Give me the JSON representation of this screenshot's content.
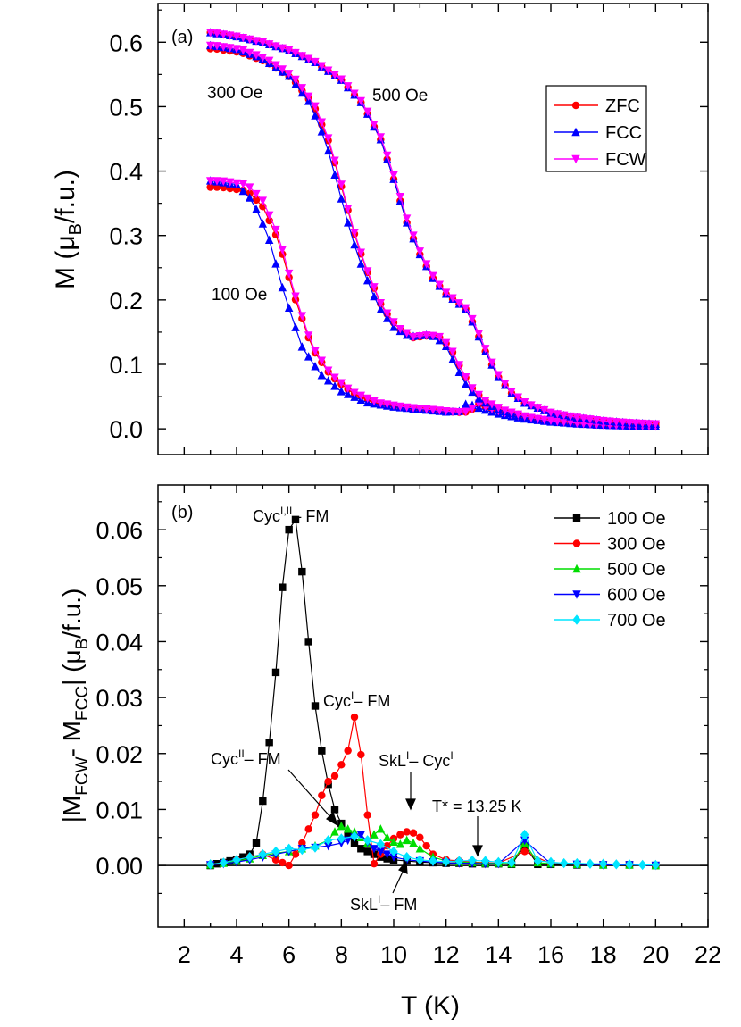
{
  "figure": {
    "xlabel": "T (K)",
    "xticks": [
      "2",
      "4",
      "6",
      "8",
      "10",
      "12",
      "14",
      "16",
      "18",
      "20",
      "22"
    ]
  },
  "chart_data": [
    {
      "type": "line",
      "panel_label": "(a)",
      "ylabel_main": "M (μ",
      "ylabel_sub": "B",
      "ylabel_tail": "/f.u.)",
      "xlim": [
        1,
        22
      ],
      "ylim": [
        -0.04,
        0.66
      ],
      "yticks": [
        "0.0",
        "0.1",
        "0.2",
        "0.3",
        "0.4",
        "0.5",
        "0.6"
      ],
      "annotations": [
        "300 Oe",
        "500 Oe",
        "100 Oe"
      ],
      "legend": {
        "position": "upper-right",
        "entries": [
          "ZFC",
          "FCC",
          "FCW"
        ]
      },
      "series_style": {
        "ZFC": "#ff0000",
        "FCC": "#0000ff",
        "FCW": "#ff00ff"
      },
      "curves": [
        {
          "field": "100 Oe",
          "ZFC_top": 0.375,
          "FCC_top": 0.385,
          "FCW_top": 0.385,
          "ZFC_T_shift": 0.4,
          "FCC_T_shift": 0.0,
          "FCW_T_shift": 0.4,
          "profile_T": [
            3,
            4,
            4.6,
            5.2,
            5.8,
            6.5,
            7.2,
            8,
            9,
            10,
            11,
            12,
            12.5,
            12.8,
            13.2,
            14,
            15,
            16,
            17,
            18,
            19,
            20
          ],
          "profile_M": [
            1.0,
            0.985,
            0.92,
            0.78,
            0.55,
            0.33,
            0.22,
            0.15,
            0.105,
            0.088,
            0.078,
            0.068,
            0.07,
            0.105,
            0.085,
            0.06,
            0.04,
            0.028,
            0.02,
            0.015,
            0.012,
            0.01
          ]
        },
        {
          "field": "300 Oe",
          "ZFC_top": 0.59,
          "FCC_top": 0.595,
          "FCW_top": 0.595,
          "ZFC_T_shift": 0.15,
          "FCC_T_shift": 0.0,
          "FCW_T_shift": 0.15,
          "profile_T": [
            3,
            4,
            5,
            6,
            6.8,
            7.4,
            8,
            8.4,
            8.8,
            9.4,
            10,
            10.6,
            11.2,
            11.6,
            12,
            12.4,
            12.8,
            13.3,
            14,
            15,
            16,
            17,
            18,
            19,
            20
          ],
          "profile_M": [
            1.0,
            0.99,
            0.965,
            0.92,
            0.85,
            0.75,
            0.6,
            0.5,
            0.42,
            0.32,
            0.265,
            0.24,
            0.245,
            0.24,
            0.215,
            0.16,
            0.11,
            0.075,
            0.05,
            0.03,
            0.02,
            0.014,
            0.01,
            0.008,
            0.007
          ]
        },
        {
          "field": "500 Oe",
          "ZFC_top": 0.615,
          "FCC_top": 0.615,
          "FCW_top": 0.615,
          "ZFC_T_shift": 0.0,
          "FCC_T_shift": 0.0,
          "FCW_T_shift": 0.05,
          "profile_T": [
            3,
            4,
            5,
            6,
            7,
            8,
            8.8,
            9.5,
            10,
            10.5,
            11,
            11.5,
            12,
            12.5,
            12.8,
            13.2,
            13.6,
            14,
            14.5,
            15,
            16,
            17,
            18,
            19,
            20
          ],
          "profile_M": [
            1.0,
            0.99,
            0.975,
            0.955,
            0.925,
            0.88,
            0.82,
            0.73,
            0.63,
            0.52,
            0.44,
            0.38,
            0.34,
            0.315,
            0.3,
            0.24,
            0.18,
            0.13,
            0.09,
            0.065,
            0.04,
            0.028,
            0.02,
            0.015,
            0.012
          ]
        }
      ]
    },
    {
      "type": "line",
      "panel_label": "(b)",
      "ylabel_a": "|M",
      "ylabel_a_sub": "FCW",
      "ylabel_b": "- M",
      "ylabel_b_sub": "FCC",
      "ylabel_c": "| (μ",
      "ylabel_c_sub": "B",
      "ylabel_d": "/f.u.)",
      "xlim": [
        1,
        22
      ],
      "ylim": [
        -0.011,
        0.068
      ],
      "yticks": [
        "0.00",
        "0.01",
        "0.02",
        "0.03",
        "0.04",
        "0.05",
        "0.06"
      ],
      "legend": {
        "position": "upper-right",
        "entries": [
          "100 Oe",
          "300 Oe",
          "500 Oe",
          "600 Oe",
          "700 Oe"
        ]
      },
      "annotations": [
        {
          "base": "Cyc",
          "sup": "I,II",
          "tail": "– FM"
        },
        {
          "base": "Cyc",
          "sup": "I",
          "tail": "– FM"
        },
        {
          "base": "Cyc",
          "sup": "II",
          "tail": "– FM"
        },
        {
          "base": "SkL",
          "sup": "I",
          "tail": "– Cyc",
          "sup2": "I"
        },
        {
          "base": "T* = 13.25 K",
          "sup": "",
          "tail": ""
        },
        {
          "base": "SkL",
          "sup": "I",
          "tail": "– FM"
        }
      ],
      "series": [
        {
          "name": "100 Oe",
          "color": "#000000",
          "marker": "square",
          "x": [
            3,
            3.25,
            3.5,
            3.75,
            4,
            4.25,
            4.5,
            4.75,
            5,
            5.25,
            5.5,
            5.75,
            6,
            6.25,
            6.5,
            6.75,
            7,
            7.25,
            7.5,
            7.75,
            8,
            8.25,
            8.5,
            8.75,
            9,
            9.25,
            9.5,
            9.75,
            10,
            10.5,
            11,
            11.5,
            12,
            12.5,
            13,
            13.5,
            14,
            14.5,
            15,
            15.5,
            16,
            17,
            18,
            19,
            20
          ],
          "y": [
            0,
            0.0003,
            0.0005,
            0.0008,
            0.001,
            0.0015,
            0.002,
            0.004,
            0.0115,
            0.022,
            0.0345,
            0.0497,
            0.06,
            0.0618,
            0.0525,
            0.04,
            0.0285,
            0.0205,
            0.0145,
            0.01,
            0.0075,
            0.0055,
            0.004,
            0.003,
            0.0025,
            0.002,
            0.0015,
            0.0012,
            0.001,
            0.0008,
            0.0006,
            0.0005,
            0.0004,
            0.0004,
            0.0003,
            0.0003,
            0.0003,
            0.0002,
            0.0035,
            0.0002,
            0.0002,
            0.0001,
            0.0001,
            0.0001,
            0
          ]
        },
        {
          "name": "300 Oe",
          "color": "#ff0000",
          "marker": "circle",
          "x": [
            3,
            3.5,
            4,
            4.5,
            5,
            5.5,
            5.75,
            6,
            6.25,
            6.5,
            6.75,
            7,
            7.25,
            7.5,
            7.75,
            8,
            8.25,
            8.5,
            8.75,
            9,
            9.25,
            9.5,
            9.75,
            10,
            10.25,
            10.5,
            10.75,
            11,
            11.25,
            11.5,
            12,
            12.5,
            13,
            14,
            15,
            16,
            17,
            18,
            19,
            20
          ],
          "y": [
            0.0002,
            0.0005,
            0.001,
            0.0015,
            0.002,
            0.001,
            0.0005,
            0.0,
            0.002,
            0.004,
            0.0065,
            0.009,
            0.0125,
            0.015,
            0.016,
            0.018,
            0.0205,
            0.0265,
            0.0198,
            0.009,
            0.0003,
            0.002,
            0.0035,
            0.0048,
            0.0055,
            0.006,
            0.0058,
            0.005,
            0.0035,
            0.002,
            0.001,
            0.0008,
            0.0006,
            0.0004,
            0.0025,
            0.0003,
            0.0002,
            0.0001,
            0.0001,
            0
          ]
        },
        {
          "name": "500 Oe",
          "color": "#00dd00",
          "marker": "triangle",
          "x": [
            3,
            3.5,
            4,
            4.5,
            5,
            5.5,
            6,
            6.5,
            7,
            7.5,
            7.75,
            8,
            8.25,
            8.5,
            8.75,
            9,
            9.25,
            9.5,
            9.75,
            10,
            10.25,
            10.5,
            10.75,
            11,
            11.5,
            12,
            12.5,
            13,
            13.5,
            14,
            14.5,
            15,
            15.5,
            16,
            17,
            18,
            19,
            20
          ],
          "y": [
            0.0001,
            0.0004,
            0.0008,
            0.0012,
            0.0018,
            0.0022,
            0.0025,
            0.003,
            0.0035,
            0.0045,
            0.006,
            0.007,
            0.0065,
            0.006,
            0.005,
            0.004,
            0.0055,
            0.0065,
            0.005,
            0.0042,
            0.0038,
            0.0045,
            0.004,
            0.003,
            0.0015,
            0.0008,
            0.0006,
            0.0005,
            0.0004,
            0.0004,
            0.0003,
            0.004,
            0.0005,
            0.0003,
            0.0002,
            0.0001,
            0.0001,
            0
          ]
        },
        {
          "name": "600 Oe",
          "color": "#0000ff",
          "marker": "triangle-down",
          "x": [
            3,
            3.5,
            4,
            4.5,
            5,
            5.5,
            6,
            6.5,
            7,
            7.5,
            8,
            8.25,
            8.5,
            8.75,
            9,
            9.25,
            9.5,
            9.75,
            10,
            10.5,
            11,
            11.5,
            12,
            12.5,
            13,
            13.5,
            14,
            15,
            16,
            17,
            18,
            19,
            20
          ],
          "y": [
            0.0001,
            0.0003,
            0.0006,
            0.001,
            0.0015,
            0.002,
            0.0025,
            0.003,
            0.0032,
            0.0035,
            0.004,
            0.0045,
            0.005,
            0.0055,
            0.0042,
            0.003,
            0.0025,
            0.002,
            0.0015,
            0.001,
            0.0008,
            0.0006,
            0.0005,
            0.0004,
            0.0004,
            0.0003,
            0.0003,
            0.0045,
            0.0003,
            0.0002,
            0.0001,
            0.0001,
            0
          ]
        },
        {
          "name": "700 Oe",
          "color": "#00e5ff",
          "marker": "diamond",
          "x": [
            3,
            3.5,
            4,
            4.5,
            5,
            5.5,
            6,
            6.5,
            7,
            7.5,
            8,
            8.5,
            9,
            9.5,
            10,
            10.5,
            11,
            11.5,
            12,
            12.5,
            13,
            13.5,
            14,
            14.5,
            15,
            15.5,
            16,
            16.5,
            17,
            17.5,
            18,
            18.5,
            19,
            19.5,
            20
          ],
          "y": [
            0.0002,
            0.0005,
            0.001,
            0.0015,
            0.002,
            0.0025,
            0.003,
            0.0028,
            0.0032,
            0.0045,
            0.0048,
            0.0052,
            0.0045,
            0.0038,
            0.0025,
            0.0015,
            0.001,
            0.0008,
            0.0007,
            0.0008,
            0.0009,
            0.0008,
            0.0006,
            0.0005,
            0.0055,
            0.0008,
            0.0006,
            0.0004,
            0.0004,
            0.0003,
            0.0003,
            0.0002,
            0.0002,
            0.0001,
            0.0001
          ]
        }
      ]
    }
  ]
}
